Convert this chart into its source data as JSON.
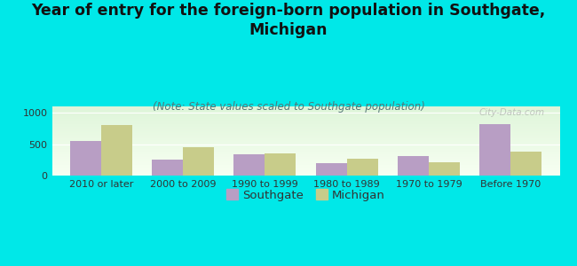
{
  "title": "Year of entry for the foreign-born population in Southgate,\nMichigan",
  "subtitle": "(Note: State values scaled to Southgate population)",
  "categories": [
    "2010 or later",
    "2000 to 2009",
    "1990 to 1999",
    "1980 to 1989",
    "1970 to 1979",
    "Before 1970"
  ],
  "southgate_values": [
    550,
    250,
    340,
    200,
    310,
    820
  ],
  "michigan_values": [
    810,
    450,
    355,
    270,
    210,
    375
  ],
  "southgate_color": "#b89ec4",
  "michigan_color": "#c8cc8a",
  "bg_color": "#00e8e8",
  "ylim": [
    0,
    1100
  ],
  "yticks": [
    0,
    500,
    1000
  ],
  "watermark": "City-Data.com",
  "bar_width": 0.38,
  "title_fontsize": 12.5,
  "subtitle_fontsize": 8.5,
  "legend_fontsize": 9.5,
  "tick_fontsize": 8
}
